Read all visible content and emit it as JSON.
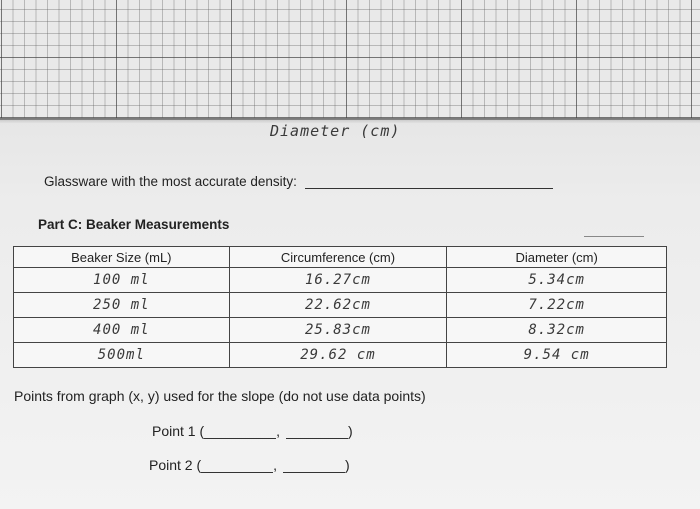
{
  "graph": {
    "x_axis_label": "Diameter (cm)"
  },
  "density_question": {
    "label": "Glassware with the most accurate density:"
  },
  "part_c": {
    "title": "Part C: Beaker Measurements",
    "columns": [
      "Beaker Size (mL)",
      "Circumference (cm)",
      "Diameter (cm)"
    ],
    "rows": [
      [
        "100 ml",
        "16.27cm",
        "5.34cm"
      ],
      [
        "250 ml",
        "22.62cm",
        "7.22cm"
      ],
      [
        "400 ml",
        "25.83cm",
        "8.32cm"
      ],
      [
        "500ml",
        "29.62 cm",
        "9.54 cm"
      ]
    ]
  },
  "slope_points": {
    "title": "Points from graph (x, y) used for the slope (do not use data points)",
    "point1_label": "Point 1 (",
    "point2_label": "Point 2 (",
    "comma": ",",
    "close": ")"
  }
}
